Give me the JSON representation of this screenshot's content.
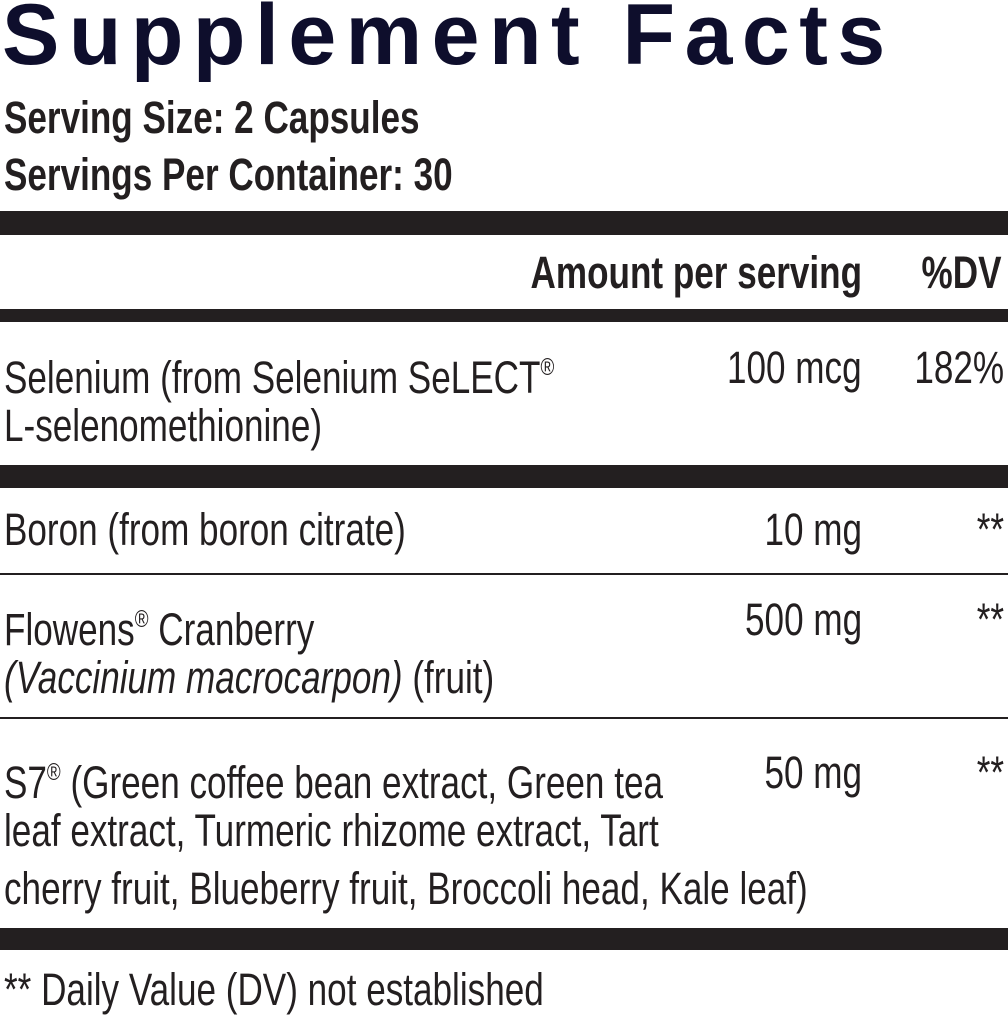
{
  "title": "Supplement Facts",
  "serving_size": "Serving Size: 2 Capsules",
  "servings_per_container": "Servings Per Container: 30",
  "header": {
    "amount": "Amount per serving",
    "dv": "%DV"
  },
  "rows": [
    {
      "name_line1": "Selenium (from Selenium SeLECT",
      "reg": "®",
      "name_line2": "L-selenomethionine)",
      "amount": "100 mcg",
      "dv": "182%"
    },
    {
      "name_line1": "Boron (from boron citrate)",
      "amount": "10 mg",
      "dv": "**"
    },
    {
      "name_line1": "Flowens",
      "reg": "®",
      "name_line1b": " Cranberry",
      "name_line2_italic": "(Vaccinium macrocarpon)",
      "name_line2": " (fruit)",
      "amount": "500 mg",
      "dv": "**"
    },
    {
      "name_line1": "S7",
      "reg": "®",
      "name_line1b": " (Green coffee bean extract, Green tea",
      "name_line2": "leaf extract, Turmeric rhizome extract, Tart",
      "name_line3": "cherry fruit, Blueberry fruit, Broccoli head, Kale leaf)",
      "amount": "50 mg",
      "dv": "**"
    }
  ],
  "footnote": "** Daily Value (DV) not established"
}
